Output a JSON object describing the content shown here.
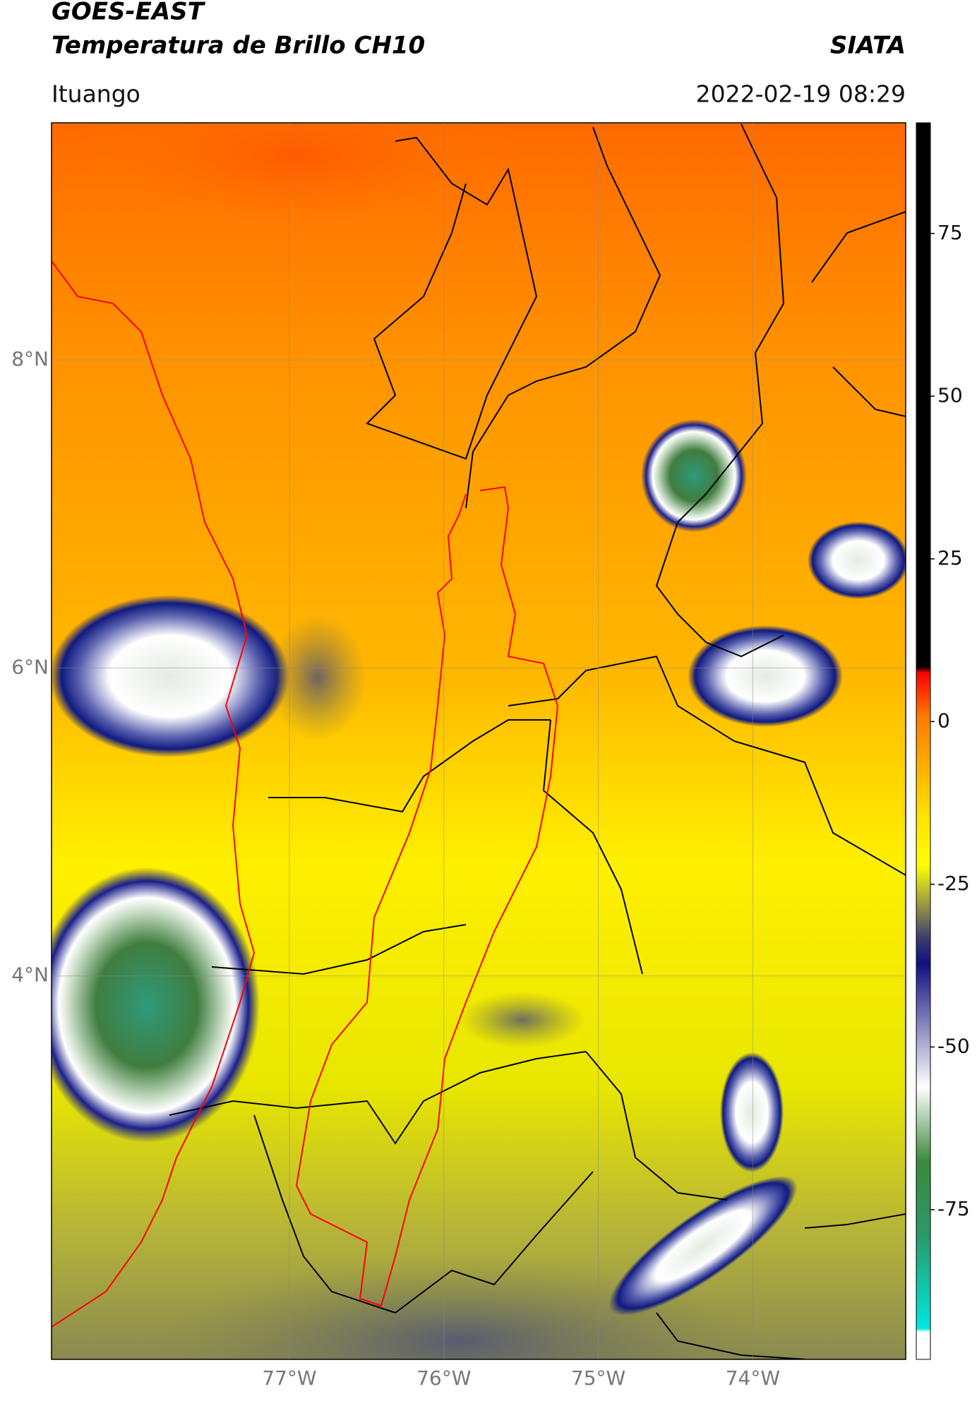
{
  "chart_data": {
    "type": "map",
    "title": "GOES-EAST",
    "subtitle": "Temperatura de Brillo CH10",
    "source": "SIATA",
    "location": "Ituango",
    "datetime": "2022-02-19 08:29",
    "xlim": [
      -78.54,
      -73.01
    ],
    "ylim": [
      1.51,
      9.54
    ],
    "xticks": [
      {
        "value": -77,
        "label": "77°W"
      },
      {
        "value": -76,
        "label": "76°W"
      },
      {
        "value": -75,
        "label": "75°W"
      },
      {
        "value": -74,
        "label": "74°W"
      }
    ],
    "yticks": [
      {
        "value": 8,
        "label": "8°N"
      },
      {
        "value": 6,
        "label": "6°N"
      },
      {
        "value": 4,
        "label": "4°N"
      }
    ],
    "grid": true,
    "colorbar": {
      "lim": [
        -98,
        92
      ],
      "ticks": [
        75,
        50,
        25,
        0,
        -25,
        -50,
        -75
      ]
    }
  }
}
